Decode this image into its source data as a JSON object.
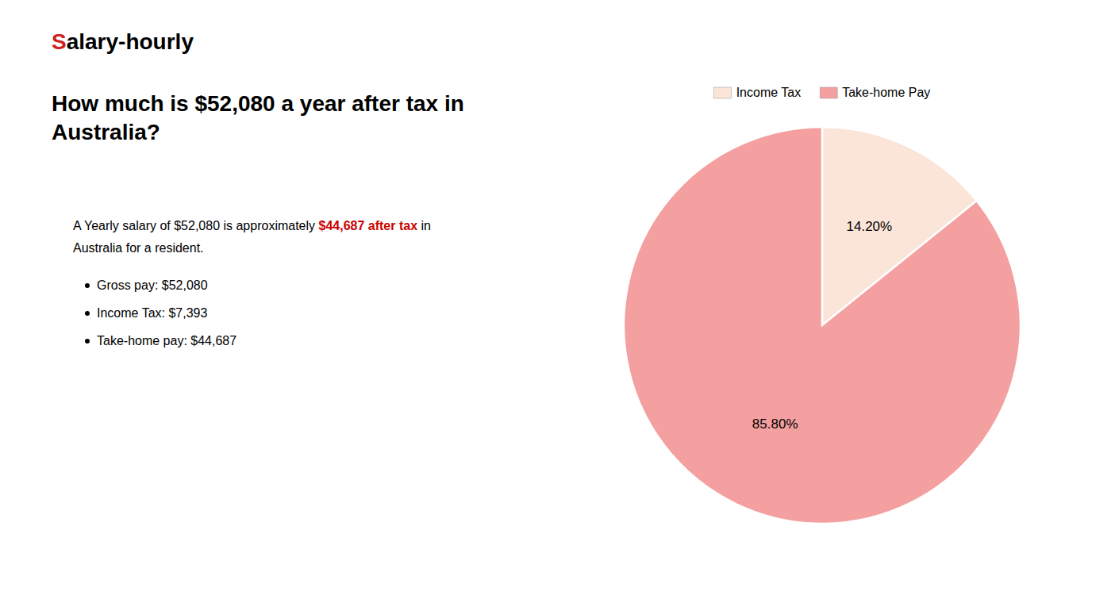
{
  "chart_data": {
    "type": "pie",
    "title": "How much is $52,080 a year after tax in Australia?",
    "annotations": [
      {
        "text": "S",
        "color": "#cc2222"
      },
      {
        "text": "alary-hourly"
      },
      {
        "text": "A Yearly salary of $52,080 is approximately "
      },
      {
        "text": "$44,687 after tax",
        "color": "#cc0000"
      },
      {
        "text": " in"
      },
      {
        "text": "Australia for a resident."
      },
      {
        "text": "Gross pay: $52,080"
      },
      {
        "text": "Income Tax: $7,393"
      },
      {
        "text": "Take-home pay: $44,687"
      }
    ],
    "categories": [
      "Income Tax",
      "Take-home Pay"
    ],
    "values": [
      14.2,
      85.8
    ],
    "value_labels": [
      "14.20%",
      "85.80%"
    ],
    "colors": [
      "#fae5d8",
      "#f4a0a0"
    ],
    "data_labels": true,
    "legend": "top"
  }
}
